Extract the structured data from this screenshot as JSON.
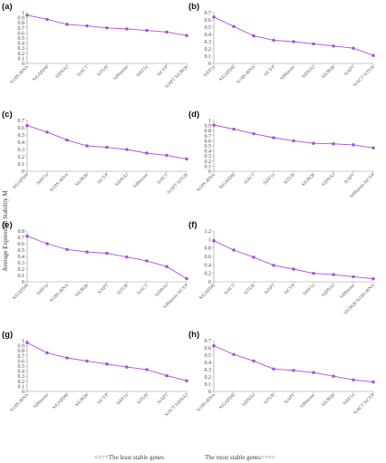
{
  "y_label": "Average Expression Stability M",
  "footer_left": "<<==The least stable genes",
  "footer_right": "The most stable genes==>>",
  "colors": {
    "series": "#b04fd8",
    "point": "#a64bd6",
    "axis": "#9a9a9a"
  },
  "chart_data": [
    {
      "type": "line",
      "label": "(a)",
      "ylim": [
        0,
        1
      ],
      "yticks": [
        0,
        0.1,
        0.2,
        0.3,
        0.4,
        0.5,
        0.6,
        0.7,
        0.8,
        0.9,
        1
      ],
      "categories": [
        "Si18S rRNA",
        "SiGAPDH",
        "SiDNAJ",
        "SiACT",
        "SiTUB",
        "SiHistone",
        "SiEF1α",
        "SiCYP",
        "SiAPT SiUBQ6"
      ],
      "values": [
        0.95,
        0.87,
        0.77,
        0.74,
        0.7,
        0.68,
        0.65,
        0.62,
        0.55
      ]
    },
    {
      "type": "line",
      "label": "(b)",
      "ylim": [
        0,
        0.7
      ],
      "yticks": [
        0,
        0.1,
        0.2,
        0.3,
        0.4,
        0.5,
        0.6,
        0.7
      ],
      "categories": [
        "SiEF1α",
        "SiGAPDH",
        "Si18S rRNA",
        "SiCYP",
        "SiHistone",
        "SiDNAJ",
        "SiUBQ6",
        "SiAPT",
        "SiACT SiTUB"
      ],
      "values": [
        0.64,
        0.51,
        0.38,
        0.32,
        0.3,
        0.27,
        0.24,
        0.21,
        0.11
      ]
    },
    {
      "type": "line",
      "label": "(c)",
      "ylim": [
        0,
        0.7
      ],
      "yticks": [
        0,
        0.1,
        0.2,
        0.3,
        0.4,
        0.5,
        0.6,
        0.7
      ],
      "categories": [
        "SiGAPDH",
        "SiEF1α",
        "Si18S rRNA",
        "SiUBQ6",
        "SiCYP",
        "SiDNAJ",
        "SiHistone",
        "SiACT",
        "SiAPT SiTUB"
      ],
      "values": [
        0.63,
        0.54,
        0.43,
        0.35,
        0.33,
        0.3,
        0.25,
        0.22,
        0.17
      ]
    },
    {
      "type": "line",
      "label": "(d)",
      "ylim": [
        0,
        1
      ],
      "yticks": [
        0,
        0.1,
        0.2,
        0.3,
        0.4,
        0.5,
        0.6,
        0.7,
        0.8,
        0.9,
        1
      ],
      "categories": [
        "Si18S rRNA",
        "SiGAPDH",
        "SiACT",
        "SiEF1α",
        "SiTUB",
        "SiUBQ6",
        "SiDNAJ",
        "SiAPT",
        "SiHistone SiCYP"
      ],
      "values": [
        0.91,
        0.83,
        0.74,
        0.66,
        0.6,
        0.55,
        0.54,
        0.52,
        0.46
      ]
    },
    {
      "type": "line",
      "label": "(e)",
      "ylim": [
        0,
        0.8
      ],
      "yticks": [
        0,
        0.1,
        0.2,
        0.3,
        0.4,
        0.5,
        0.6,
        0.7,
        0.8
      ],
      "categories": [
        "SiGAPDH",
        "SiEF1α",
        "Si18S rRNA",
        "SiUBQ6",
        "SiAPT",
        "SiTUB",
        "SiACT",
        "SiDNAJ",
        "SiHistone SiCYP"
      ],
      "values": [
        0.72,
        0.6,
        0.51,
        0.47,
        0.45,
        0.39,
        0.33,
        0.24,
        0.05
      ]
    },
    {
      "type": "line",
      "label": "(f)",
      "ylim": [
        0,
        1.2
      ],
      "yticks": [
        0,
        0.2,
        0.4,
        0.6,
        0.8,
        1,
        1.2
      ],
      "categories": [
        "SiGAPDH",
        "SiACT",
        "SiTUB",
        "SiAPT",
        "SiCYP",
        "SiEF1α",
        "SiDNAJ",
        "SiHistone",
        "SiUBQ6 Si18S rRNA"
      ],
      "values": [
        0.97,
        0.75,
        0.58,
        0.39,
        0.3,
        0.2,
        0.17,
        0.12,
        0.07
      ]
    },
    {
      "type": "line",
      "label": "(g)",
      "ylim": [
        0,
        1
      ],
      "yticks": [
        0,
        0.1,
        0.2,
        0.3,
        0.4,
        0.5,
        0.6,
        0.7,
        0.8,
        0.9,
        1
      ],
      "categories": [
        "Si18S rRNA",
        "SiHistone",
        "SiGAPDH",
        "SiUBQ6",
        "SiCYP",
        "SiEF1α",
        "SiTUB",
        "SiAPT",
        "SiACT SiDNAJ"
      ],
      "values": [
        0.96,
        0.76,
        0.66,
        0.6,
        0.54,
        0.48,
        0.43,
        0.31,
        0.21
      ]
    },
    {
      "type": "line",
      "label": "(h)",
      "ylim": [
        0,
        0.7
      ],
      "yticks": [
        0,
        0.1,
        0.2,
        0.3,
        0.4,
        0.5,
        0.6,
        0.7
      ],
      "categories": [
        "Si18S rRNA",
        "SiGAPDH",
        "SiDNAJ",
        "SiTUB",
        "SiAPT",
        "SiHistone",
        "SiUBQ6",
        "SiEF1α",
        "SiACT SiCYP"
      ],
      "values": [
        0.63,
        0.51,
        0.42,
        0.31,
        0.29,
        0.26,
        0.21,
        0.16,
        0.13
      ]
    }
  ]
}
